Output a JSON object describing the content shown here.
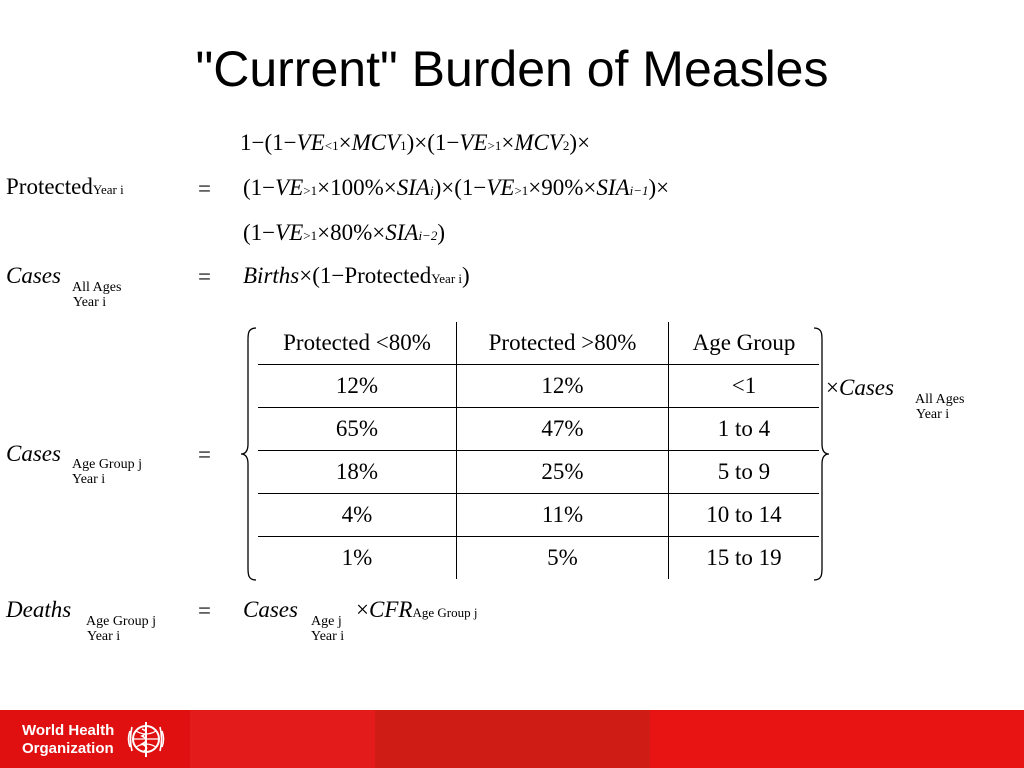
{
  "title": "\"Current\" Burden of Measles",
  "equations": {
    "protected": {
      "lhs": "Protected",
      "lhs_sub": "Year i",
      "eq": "=",
      "line1": {
        "a": "1",
        "minus": "−",
        "open": "(1",
        "ve": "VE",
        "sub_lt1": "<1",
        "times": "×",
        "mcv": "MCV",
        "sub_1": "1",
        "close_times": ")×(1",
        "ve2": "VE",
        "sub_gt1": ">1",
        "mcv2": "MCV",
        "sub_2": "2",
        "tail": ")×"
      },
      "line2": {
        "open": "(1",
        "ve": "VE",
        "sub_gt1": ">1",
        "pct100": "×100%×",
        "sia": "SIA",
        "sub_i": "i",
        "close_times": ")×(1",
        "ve2": "VE",
        "sub_gt1b": ">1",
        "pct90": "×90%×",
        "sia2": "SIA",
        "sub_i1": "i−1",
        "tail": ")×"
      },
      "line3": {
        "open": "(1",
        "ve": "VE",
        "sub_gt1": ">1",
        "pct80": "×80%×",
        "sia": "SIA",
        "sub_i2": "i−2",
        "tail": ")"
      }
    },
    "cases_all": {
      "lhs": "Cases",
      "lhs_sub1": "All Ages",
      "lhs_sub2": "Year i",
      "eq": "=",
      "births": "Births",
      "mid": "×(1−Protected",
      "sub": "Year i",
      "tail": ")"
    },
    "cases_group": {
      "lhs": "Cases",
      "lhs_sub1": "Age Group j",
      "lhs_sub2": "Year i",
      "eq": "=",
      "mult": "×",
      "rhs": "Cases",
      "rhs_sub1": "All Ages",
      "rhs_sub2": "Year i"
    },
    "deaths": {
      "lhs": "Deaths",
      "lhs_sub1": "Age Group j",
      "lhs_sub2": "Year i",
      "eq": "=",
      "cases": "Cases",
      "cases_sub1": "Age j",
      "cases_sub2": "Year i",
      "mult": "×",
      "cfr": "CFR",
      "cfr_sub": "Age Group j"
    }
  },
  "age_table": {
    "headers": [
      "Protected <80%",
      "Protected >80%",
      "Age Group"
    ],
    "rows": [
      [
        "12%",
        "12%",
        "<1"
      ],
      [
        "65%",
        "47%",
        "1 to 4"
      ],
      [
        "18%",
        "25%",
        "5 to 9"
      ],
      [
        "4%",
        "11%",
        "10 to 14"
      ],
      [
        "1%",
        "5%",
        "15 to 19"
      ]
    ]
  },
  "footer": {
    "org_line1": "World Health",
    "org_line2": "Organization",
    "emblem": "who-emblem-icon",
    "colors": {
      "bar": "#e31b1b",
      "text": "#ffffff"
    }
  }
}
